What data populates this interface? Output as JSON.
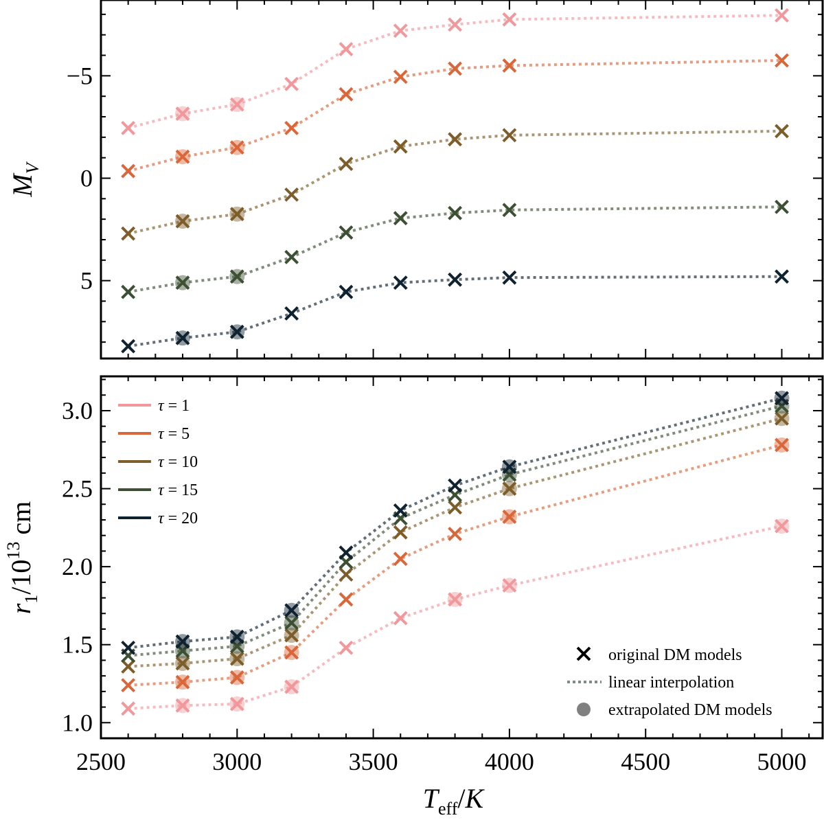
{
  "chart_data": [
    {
      "type": "line",
      "panel": "top",
      "ylabel": "M_V",
      "xlabel": "",
      "xlim": [
        2500,
        5150
      ],
      "ylim": [
        8.8,
        -8.7
      ],
      "y_inverted": true,
      "xticks": [
        2500,
        3000,
        3500,
        4000,
        4500,
        5000
      ],
      "yticks": [
        -5,
        0,
        5
      ],
      "ytick_labels": [
        "−5",
        "0",
        "5"
      ],
      "x": [
        2600,
        2800,
        3000,
        3200,
        3400,
        3600,
        3800,
        4000,
        5000
      ],
      "series": [
        {
          "name": "τ = 1",
          "color": "#f0989c",
          "values": [
            -2.45,
            -3.15,
            -3.6,
            -4.6,
            -6.3,
            -7.2,
            -7.5,
            -7.75,
            -7.95
          ],
          "extrapolated": [
            false,
            true,
            true,
            false,
            false,
            false,
            false,
            false,
            false
          ]
        },
        {
          "name": "τ = 5",
          "color": "#d9673a",
          "values": [
            -0.35,
            -1.05,
            -1.5,
            -2.45,
            -4.1,
            -4.95,
            -5.35,
            -5.5,
            -5.75
          ],
          "extrapolated": [
            false,
            true,
            true,
            false,
            false,
            false,
            false,
            false,
            false
          ]
        },
        {
          "name": "τ = 10",
          "color": "#7d5e2a",
          "values": [
            2.7,
            2.1,
            1.75,
            0.8,
            -0.7,
            -1.55,
            -1.9,
            -2.1,
            -2.3
          ],
          "extrapolated": [
            false,
            true,
            true,
            false,
            false,
            false,
            false,
            false,
            false
          ]
        },
        {
          "name": "τ = 15",
          "color": "#3d5033",
          "values": [
            5.55,
            5.1,
            4.8,
            3.85,
            2.65,
            1.95,
            1.7,
            1.55,
            1.4
          ],
          "extrapolated": [
            false,
            true,
            true,
            false,
            false,
            false,
            false,
            false,
            false
          ]
        },
        {
          "name": "τ = 20",
          "color": "#0f2230",
          "values": [
            8.2,
            7.8,
            7.5,
            6.6,
            5.55,
            5.1,
            4.95,
            4.85,
            4.8
          ],
          "extrapolated": [
            false,
            true,
            true,
            false,
            false,
            false,
            false,
            false,
            false
          ]
        }
      ]
    },
    {
      "type": "line",
      "panel": "bottom",
      "ylabel": "r_1 / 10^13 cm",
      "xlabel": "T_eff / K",
      "xlim": [
        2500,
        5150
      ],
      "ylim": [
        0.9,
        3.22
      ],
      "xticks": [
        2500,
        3000,
        3500,
        4000,
        4500,
        5000
      ],
      "xtick_labels": [
        "2500",
        "3000",
        "3500",
        "4000",
        "4500",
        "5000"
      ],
      "yticks": [
        1.0,
        1.5,
        2.0,
        2.5,
        3.0
      ],
      "ytick_labels": [
        "1.0",
        "1.5",
        "2.0",
        "2.5",
        "3.0"
      ],
      "x": [
        2600,
        2800,
        3000,
        3200,
        3400,
        3600,
        3800,
        4000,
        5000
      ],
      "series": [
        {
          "name": "τ = 1",
          "color": "#f0989c",
          "values": [
            1.09,
            1.11,
            1.12,
            1.23,
            1.48,
            1.67,
            1.79,
            1.88,
            2.26
          ],
          "extrapolated": [
            false,
            true,
            true,
            true,
            false,
            false,
            true,
            true,
            true
          ]
        },
        {
          "name": "τ = 5",
          "color": "#d9673a",
          "values": [
            1.24,
            1.26,
            1.29,
            1.45,
            1.79,
            2.05,
            2.21,
            2.32,
            2.78
          ],
          "extrapolated": [
            false,
            true,
            true,
            true,
            false,
            false,
            false,
            true,
            true
          ]
        },
        {
          "name": "τ = 10",
          "color": "#7d5e2a",
          "values": [
            1.36,
            1.38,
            1.41,
            1.56,
            1.95,
            2.22,
            2.38,
            2.5,
            2.95
          ],
          "extrapolated": [
            false,
            true,
            true,
            true,
            false,
            false,
            false,
            true,
            true
          ]
        },
        {
          "name": "τ = 15",
          "color": "#3d5033",
          "values": [
            1.43,
            1.46,
            1.49,
            1.64,
            2.03,
            2.31,
            2.46,
            2.59,
            3.03
          ],
          "extrapolated": [
            false,
            true,
            true,
            true,
            false,
            false,
            false,
            true,
            true
          ]
        },
        {
          "name": "τ = 20",
          "color": "#0f2230",
          "values": [
            1.48,
            1.52,
            1.55,
            1.72,
            2.09,
            2.36,
            2.52,
            2.64,
            3.08
          ],
          "extrapolated": [
            false,
            true,
            true,
            true,
            false,
            false,
            false,
            true,
            true
          ]
        }
      ]
    }
  ],
  "legend_series": {
    "tau_symbol": "τ",
    "entries": [
      {
        "label": "τ = 1",
        "value": "1",
        "color": "#f0989c"
      },
      {
        "label": "τ = 5",
        "value": "5",
        "color": "#d9673a"
      },
      {
        "label": "τ = 10",
        "value": "10",
        "color": "#7d5e2a"
      },
      {
        "label": "τ = 15",
        "value": "15",
        "color": "#3d5033"
      },
      {
        "label": "τ = 20",
        "value": "20",
        "color": "#0f2230"
      }
    ]
  },
  "legend_markers": [
    {
      "label": "original DM models",
      "marker": "x-icon"
    },
    {
      "label": "linear interpolation",
      "marker": "dotted-line-icon"
    },
    {
      "label": "extrapolated DM models",
      "marker": "filled-circle-icon"
    }
  ],
  "axis_labels": {
    "top_y_main": "M",
    "top_y_sub": "V",
    "bottom_y_r": "r",
    "bottom_y_sub": "1",
    "bottom_y_slash": "/10",
    "bottom_y_sup": "13",
    "bottom_y_unit": " cm",
    "x_T": "T",
    "x_sub": "eff",
    "x_rest": "/",
    "x_K": "K"
  }
}
